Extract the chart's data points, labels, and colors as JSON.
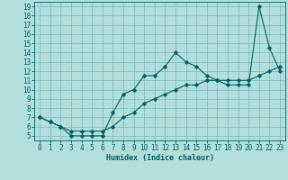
{
  "xlabel": "Humidex (Indice chaleur)",
  "ylabel": "",
  "bg_color": "#b2dede",
  "grid_color": "#7ab8b8",
  "line_color": "#006060",
  "xlim": [
    -0.5,
    23.5
  ],
  "ylim": [
    4.5,
    19.5
  ],
  "xticks": [
    0,
    1,
    2,
    3,
    4,
    5,
    6,
    7,
    8,
    9,
    10,
    11,
    12,
    13,
    14,
    15,
    16,
    17,
    18,
    19,
    20,
    21,
    22,
    23
  ],
  "yticks": [
    5,
    6,
    7,
    8,
    9,
    10,
    11,
    12,
    13,
    14,
    15,
    16,
    17,
    18,
    19
  ],
  "line1_x": [
    0,
    1,
    2,
    3,
    4,
    5,
    6,
    7,
    8,
    9,
    10,
    11,
    12,
    13,
    14,
    15,
    16,
    17,
    18,
    19,
    20,
    21,
    22,
    23
  ],
  "line1_y": [
    7.0,
    6.5,
    6.0,
    5.0,
    5.0,
    5.0,
    5.0,
    7.5,
    9.5,
    10.0,
    11.5,
    11.5,
    12.5,
    14.0,
    13.0,
    12.5,
    11.5,
    11.0,
    10.5,
    10.5,
    10.5,
    19.0,
    14.5,
    12.0
  ],
  "line2_x": [
    0,
    1,
    2,
    3,
    4,
    5,
    6,
    7,
    8,
    9,
    10,
    11,
    12,
    13,
    14,
    15,
    16,
    17,
    18,
    19,
    20,
    21,
    22,
    23
  ],
  "line2_y": [
    7.0,
    6.5,
    6.0,
    5.5,
    5.5,
    5.5,
    5.5,
    6.0,
    7.0,
    7.5,
    8.5,
    9.0,
    9.5,
    10.0,
    10.5,
    10.5,
    11.0,
    11.0,
    11.0,
    11.0,
    11.0,
    11.5,
    12.0,
    12.5
  ],
  "label_fontsize": 5.5,
  "xlabel_fontsize": 6.0,
  "marker_size": 1.8,
  "line_width": 0.8
}
